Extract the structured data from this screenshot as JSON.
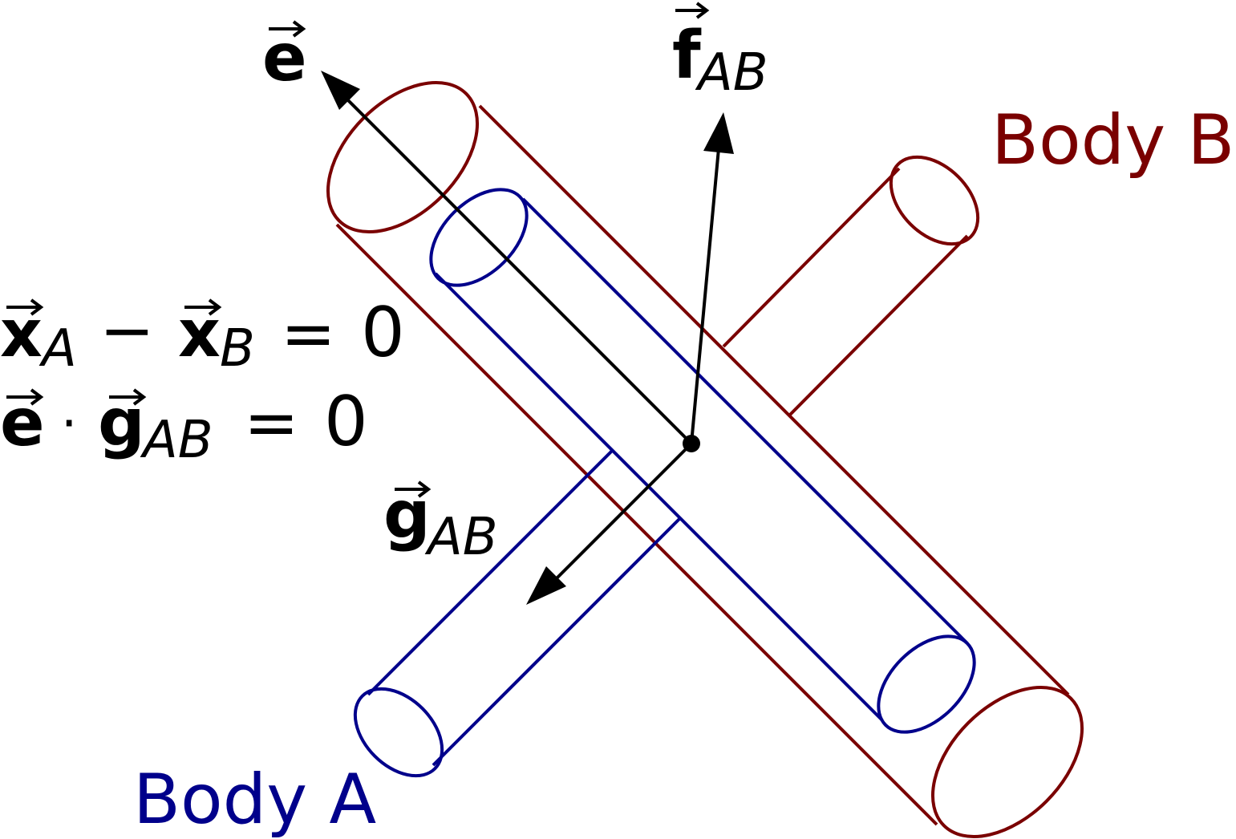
{
  "labels": {
    "body_a": "Body A",
    "body_b": "Body B"
  },
  "vectors": {
    "e": {
      "symbol": "e"
    },
    "f": {
      "symbol": "f",
      "subscript": "AB"
    },
    "g": {
      "symbol": "g",
      "subscript": "AB"
    }
  },
  "equations": {
    "eq1": {
      "a": "x",
      "a_sub": "A",
      "op": "−",
      "b": "x",
      "b_sub": "B",
      "rel": "=",
      "rhs": "0"
    },
    "eq2": {
      "a": "e",
      "dot": "·",
      "b": "g",
      "b_sub": "AB",
      "rel": "=",
      "rhs": "0"
    }
  },
  "colors": {
    "body_a": "#00008b",
    "body_b": "#7a0000",
    "vector": "#000000"
  }
}
